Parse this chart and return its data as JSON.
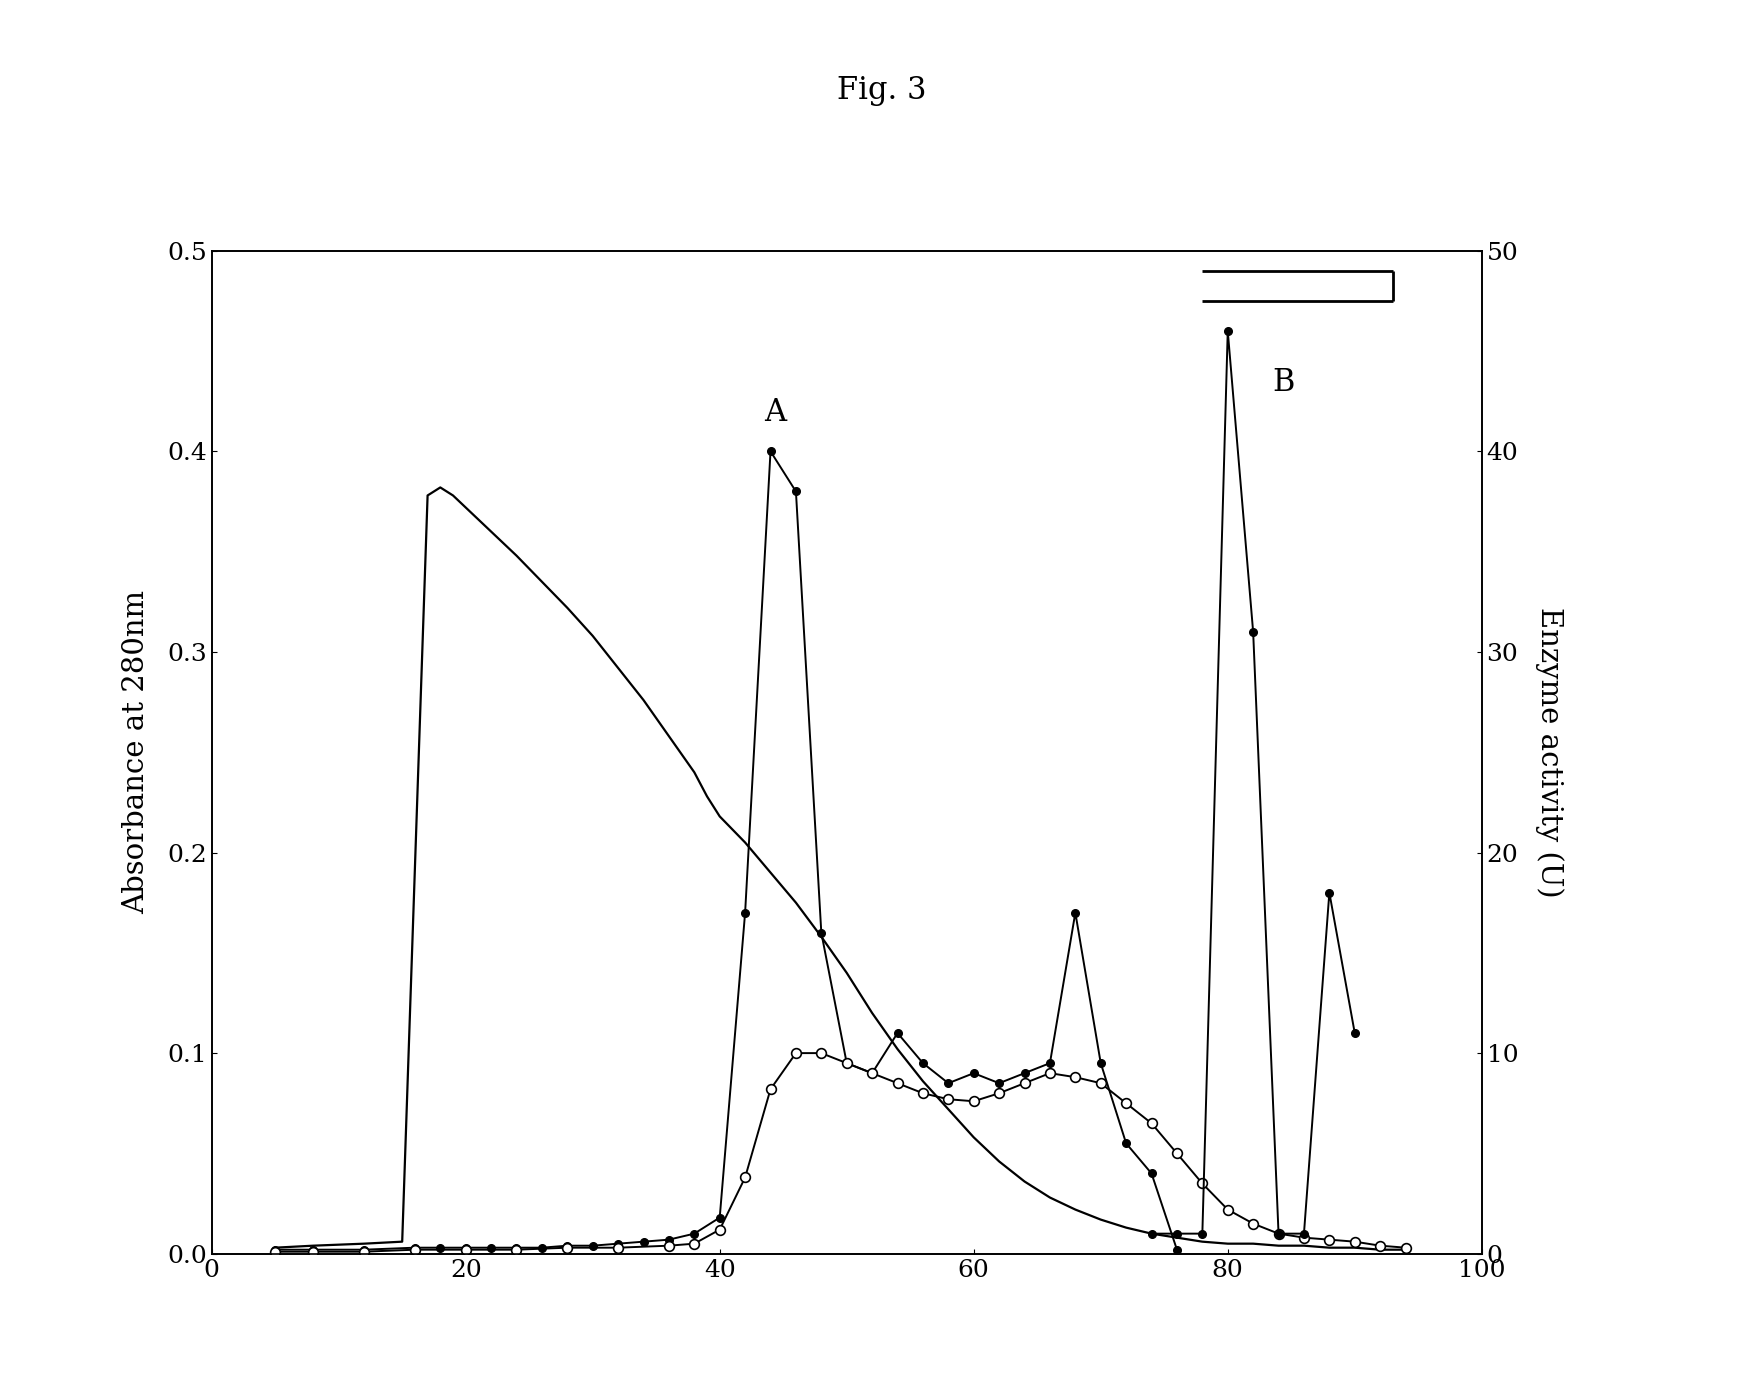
{
  "title": "Fig. 3",
  "ylabel_left": "Absorbance at 280nm",
  "ylabel_right": "Enzyme activity (U)",
  "xlim": [
    0,
    100
  ],
  "ylim_left": [
    0,
    0.5
  ],
  "ylim_right": [
    0,
    50
  ],
  "background_color": "#ffffff",
  "label_A": "A",
  "label_B": "B",
  "smooth_curve_x": [
    5,
    8,
    12,
    15,
    17,
    18,
    19,
    20,
    22,
    24,
    26,
    28,
    30,
    32,
    34,
    36,
    38,
    39,
    40,
    42,
    44,
    46,
    48,
    50,
    52,
    54,
    56,
    58,
    60,
    62,
    64,
    66,
    68,
    70,
    72,
    74,
    76,
    78,
    80,
    82,
    84,
    86,
    88,
    90,
    92,
    94
  ],
  "smooth_curve_y": [
    0.003,
    0.004,
    0.005,
    0.006,
    0.378,
    0.382,
    0.378,
    0.372,
    0.36,
    0.348,
    0.335,
    0.322,
    0.308,
    0.292,
    0.276,
    0.258,
    0.24,
    0.228,
    0.218,
    0.205,
    0.19,
    0.175,
    0.158,
    0.14,
    0.12,
    0.102,
    0.086,
    0.072,
    0.058,
    0.046,
    0.036,
    0.028,
    0.022,
    0.017,
    0.013,
    0.01,
    0.008,
    0.006,
    0.005,
    0.005,
    0.004,
    0.004,
    0.003,
    0.003,
    0.002,
    0.002
  ],
  "dot_solid_x": [
    5,
    8,
    12,
    16,
    18,
    20,
    22,
    24,
    26,
    28,
    30,
    32,
    34,
    36,
    38,
    40,
    42,
    44,
    46,
    48,
    50,
    52,
    54,
    56,
    58,
    60,
    62,
    64,
    66,
    68,
    70,
    72,
    74,
    76
  ],
  "dot_solid_y": [
    0.002,
    0.002,
    0.002,
    0.003,
    0.003,
    0.003,
    0.003,
    0.003,
    0.003,
    0.004,
    0.004,
    0.005,
    0.006,
    0.007,
    0.01,
    0.018,
    0.17,
    0.4,
    0.38,
    0.16,
    0.095,
    0.09,
    0.11,
    0.095,
    0.085,
    0.09,
    0.085,
    0.09,
    0.095,
    0.17,
    0.095,
    0.055,
    0.04,
    0.002
  ],
  "dot_open_x": [
    5,
    8,
    12,
    16,
    20,
    24,
    28,
    32,
    36,
    38,
    40,
    42,
    44,
    46,
    48,
    50,
    52,
    54,
    56,
    58,
    60,
    62,
    64,
    66,
    68,
    70,
    72,
    74,
    76,
    78,
    80,
    82,
    84,
    86,
    88,
    90,
    92,
    94
  ],
  "dot_open_y": [
    0.001,
    0.001,
    0.001,
    0.002,
    0.002,
    0.002,
    0.003,
    0.003,
    0.004,
    0.005,
    0.012,
    0.038,
    0.082,
    0.1,
    0.1,
    0.095,
    0.09,
    0.085,
    0.08,
    0.077,
    0.076,
    0.08,
    0.085,
    0.09,
    0.088,
    0.085,
    0.075,
    0.065,
    0.05,
    0.035,
    0.022,
    0.015,
    0.01,
    0.008,
    0.007,
    0.006,
    0.004,
    0.003
  ],
  "enzyme_x": [
    74,
    76,
    78,
    80,
    82,
    84,
    86,
    88,
    90
  ],
  "enzyme_y": [
    1.0,
    1.0,
    1.0,
    46.0,
    31.0,
    1.0,
    1.0,
    18.0,
    11.0
  ],
  "bracket_x1": 78,
  "bracket_x2": 93,
  "bracket_y1": 49.0,
  "bracket_y2": 47.5
}
